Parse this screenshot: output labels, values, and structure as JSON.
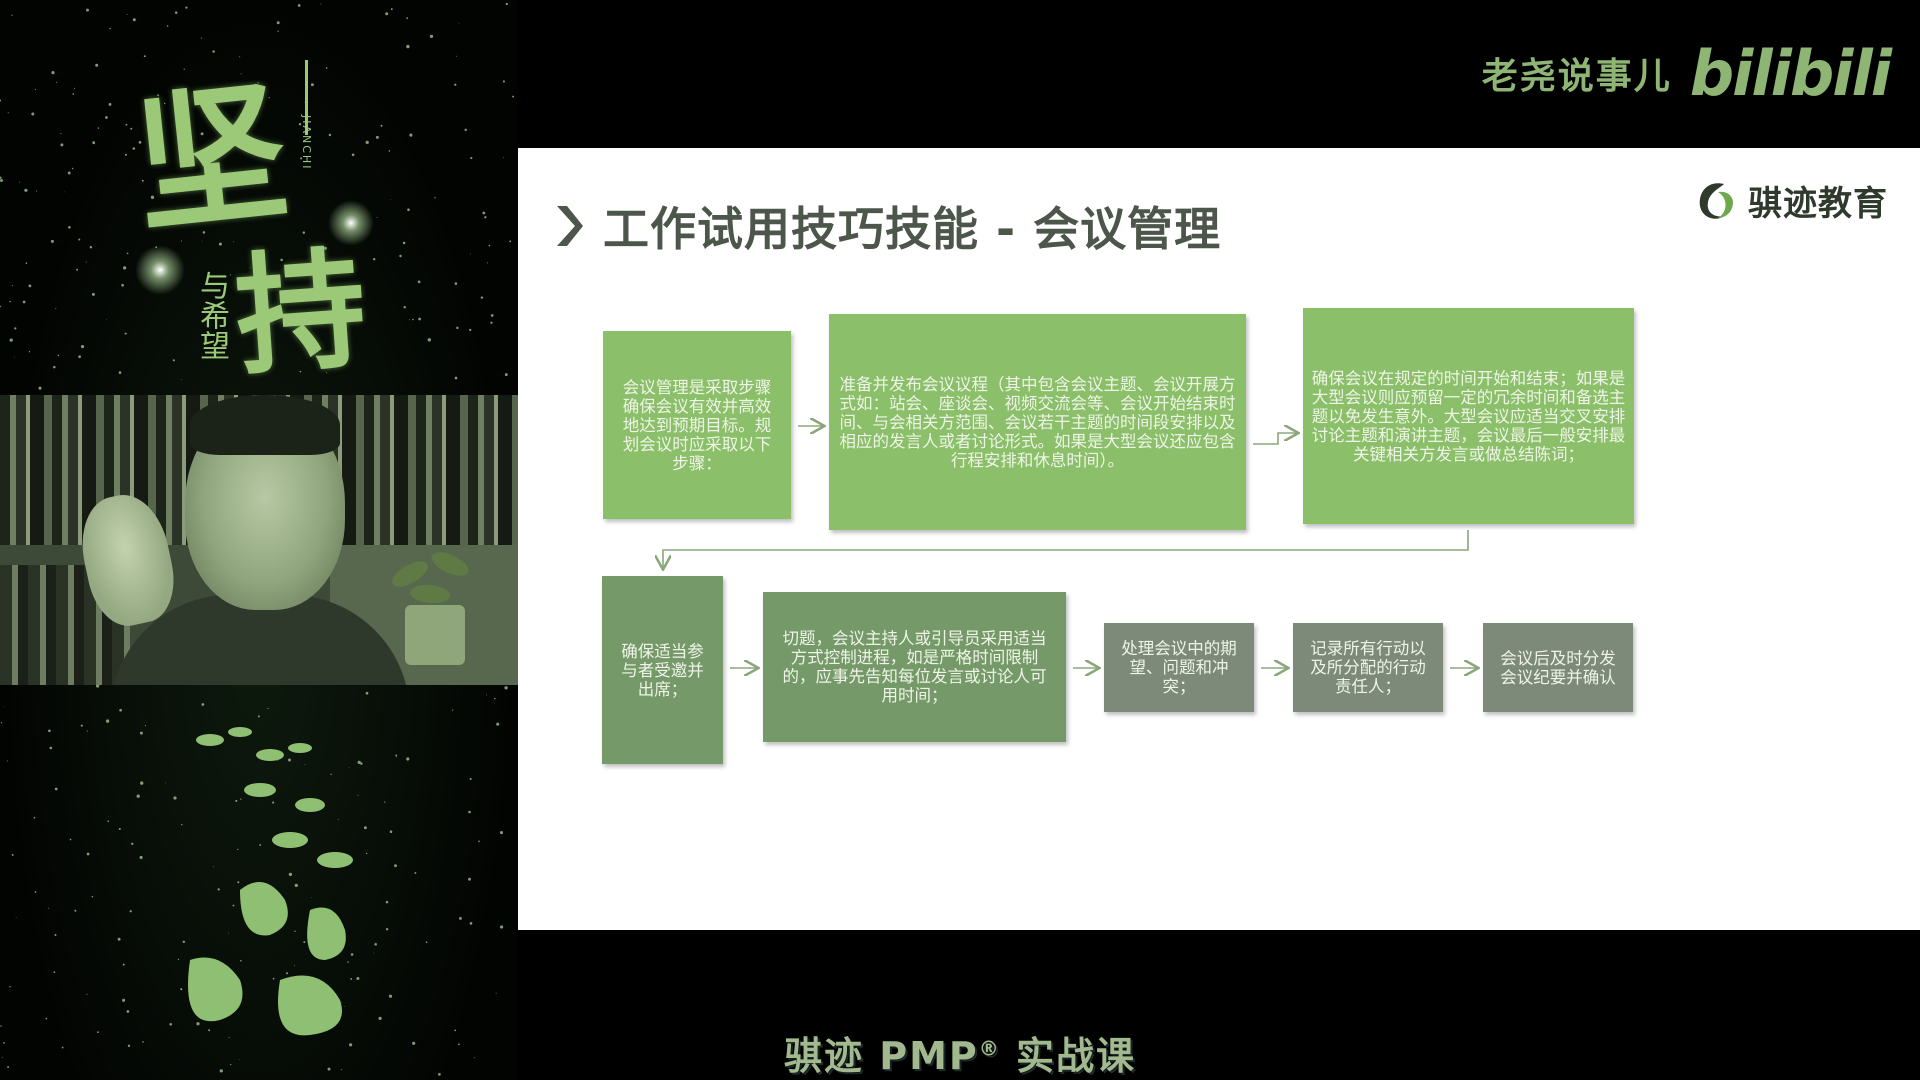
{
  "poster": {
    "main_chars": [
      "坚",
      "持"
    ],
    "subtitle": "与希望",
    "pinyin": "JIANCHI"
  },
  "brand": {
    "channel_name": "老尧说事儿",
    "site_logo": "bilibili"
  },
  "slide": {
    "title": "工作试用技巧技能 - 会议管理",
    "org_name": "骐迹教育",
    "colors": {
      "green_box": "#8bbf6a",
      "gray_box": "#7e8a79",
      "dark_green_box": "#76996a",
      "arrow": "#8aa77a"
    },
    "steps": [
      "会议管理是采取步骤确保会议有效并高效地达到预期目标。规划会议时应采取以下步骤：",
      "准备并发布会议议程（其中包含会议主题、会议开展方式如：站会、座谈会、视频交流会等、会议开始结束时间、与会相关方范围、会议若干主题的时间段安排以及相应的发言人或者讨论形式。如果是大型会议还应包含行程安排和休息时间）。",
      "确保会议在规定的时间开始和结束；如果是大型会议则应预留一定的冗余时间和备选主题以免发生意外。大型会议应适当交叉安排讨论主题和演讲主题，会议最后一般安排最关键相关方发言或做总结陈词；",
      "确保适当参与者受邀并出席；",
      "切题，会议主持人或引导员采用适当方式控制进程，如是严格时间限制的，应事先告知每位发言或讨论人可用时间；",
      "处理会议中的期望、问题和冲突；",
      "记录所有行动以及所分配的行动责任人；",
      "会议后及时分发会议纪要并确认"
    ]
  },
  "caption": {
    "text_before": "骐迹 PMP",
    "registered": "®",
    "text_after": " 实战课"
  }
}
